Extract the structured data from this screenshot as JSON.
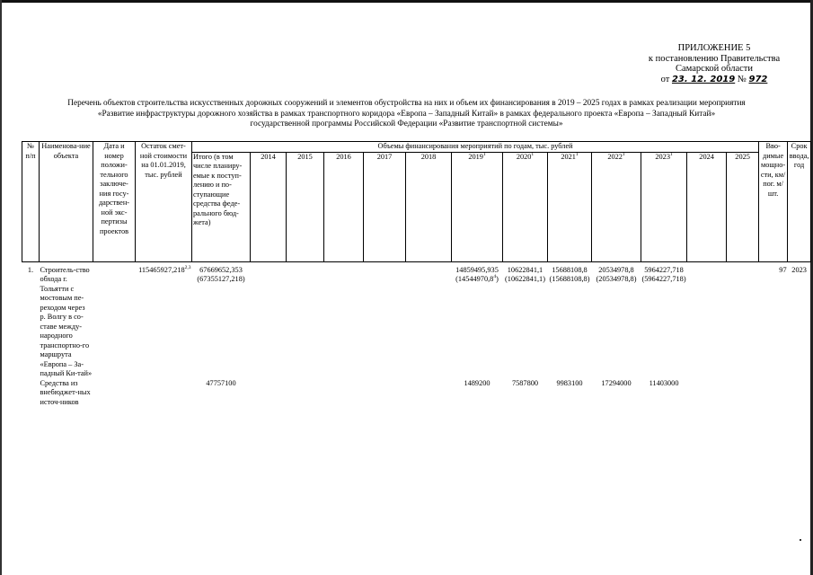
{
  "annex": {
    "line1": "ПРИЛОЖЕНИЕ 5",
    "line2": "к постановлению Правительства",
    "line3": "Самарской области",
    "date_prefix": "от",
    "date": "23. 12. 2019",
    "number_prefix": "№",
    "number": "972"
  },
  "title": {
    "line1": "Перечень объектов строительства искусственных дорожных сооружений и элементов обустройства на них и объем их финансирования в 2019 – 2025 годах в рамках реализации мероприятия",
    "line2": "«Развитие инфраструктуры дорожного хозяйства в рамках транспортного коридора «Европа – Западный Китай» в рамках федерального проекта «Европа – Западный Китай»",
    "line3": "государственной программы Российской Федерации «Развитие транспортной системы»"
  },
  "headers": {
    "num": "№ п/п",
    "name": "Наименова-ние объекта",
    "expertise": "Дата и номер положи-тельного заключе-ния госу-дарствен-ной экс-пертизы проектов",
    "remainder": "Остаток смет-ной стоимости на 01.01.2019, тыс. рублей",
    "group": "Объемы финансирования мероприятий по годам, тыс. рублей",
    "total": "Итого (в том числе планиру-емые к поступ-лению и по-ступающие средства феде-рального бюд-жета)",
    "years": [
      {
        "y": "2014",
        "s": ""
      },
      {
        "y": "2015",
        "s": ""
      },
      {
        "y": "2016",
        "s": ""
      },
      {
        "y": "2017",
        "s": ""
      },
      {
        "y": "2018",
        "s": ""
      },
      {
        "y": "2019",
        "s": "1"
      },
      {
        "y": "2020",
        "s": "1"
      },
      {
        "y": "2021",
        "s": "1"
      },
      {
        "y": "2022",
        "s": "1"
      },
      {
        "y": "2023",
        "s": "1"
      },
      {
        "y": "2024",
        "s": ""
      },
      {
        "y": "2025",
        "s": ""
      }
    ],
    "capacity": "Вво-димые мощно-сти, км/ пог. м/шт.",
    "term": "Срок ввода, год"
  },
  "rows": [
    {
      "num": "1.",
      "name": "Строитель-ство обхода г. Тольятти с мостовым пе-реходом через р. Волгу в со-ставе между-народного транспортно-го маршрута «Европа – За-падный Ки-тай»",
      "remainder": "115465927,218",
      "remainder_sup": "2,3",
      "total": "67669652,353",
      "total_sub": "(67355127,218)",
      "y2019": "14859495,935",
      "y2019_sub": "(14544970,8",
      "y2019_sup": "4",
      "y2020": "10622841,1",
      "y2020_sub": "(10622841,1)",
      "y2021": "15688108,8",
      "y2021_sub": "(15688108,8)",
      "y2022": "20534978,8",
      "y2022_sub": "(20534978,8)",
      "y2023": "5964227,718",
      "y2023_sub": "(5964227,718)",
      "capacity": "97",
      "term": "2023"
    },
    {
      "name": "Средства из внебюджет-ных источ-ников",
      "total": "47757100",
      "y2019": "1489200",
      "y2020": "7587800",
      "y2021": "9983100",
      "y2022": "17294000",
      "y2023": "11403000"
    }
  ]
}
